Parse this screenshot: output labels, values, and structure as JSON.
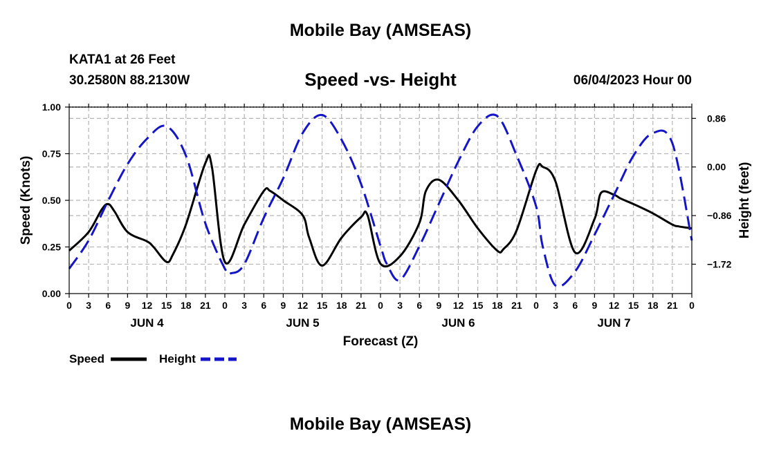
{
  "header": {
    "title": "Mobile Bay (AMSEAS)",
    "station": "KATA1 at 26 Feet",
    "coords": "30.2580N  88.2130W",
    "subtitle": "Speed -vs- Height",
    "datetime": "06/04/2023 Hour 00"
  },
  "footer": {
    "title": "Mobile Bay (AMSEAS)"
  },
  "colors": {
    "speed": "#000000",
    "height": "#1414c8",
    "grid": "#b4b4b4"
  },
  "chart_data": {
    "type": "line",
    "title": "Speed -vs- Height",
    "xlabel": "Forecast (Z)",
    "ylabel": "Speed (Knots)",
    "y2label": "Height (feet)",
    "xlim": [
      0,
      96
    ],
    "ylim": [
      0,
      1
    ],
    "y2lim": [
      -2.24,
      1.06
    ],
    "x_ticks": [
      0,
      3,
      6,
      9,
      12,
      15,
      18,
      21,
      24,
      27,
      30,
      33,
      36,
      39,
      42,
      45,
      48,
      51,
      54,
      57,
      60,
      63,
      66,
      69,
      72,
      75,
      78,
      81,
      84,
      87,
      90,
      93,
      96
    ],
    "x_tick_labels": [
      "0",
      "3",
      "6",
      "9",
      "12",
      "15",
      "18",
      "21",
      "0",
      "3",
      "6",
      "9",
      "12",
      "15",
      "18",
      "21",
      "0",
      "3",
      "6",
      "9",
      "12",
      "15",
      "18",
      "21",
      "0",
      "3",
      "6",
      "9",
      "12",
      "15",
      "18",
      "21",
      "0"
    ],
    "day_labels": [
      {
        "x": 12,
        "label": "JUN 4"
      },
      {
        "x": 36,
        "label": "JUN 5"
      },
      {
        "x": 60,
        "label": "JUN 6"
      },
      {
        "x": 84,
        "label": "JUN 7"
      }
    ],
    "y_ticks": [
      0,
      0.25,
      0.5,
      0.75,
      1.0
    ],
    "y_tick_labels": [
      "0.00",
      "0.25",
      "0.50",
      "0.75",
      "1.00"
    ],
    "y2_ticks": [
      0.86,
      0.0,
      -0.86,
      -1.72
    ],
    "y2_tick_labels": [
      "0.86",
      "0.00",
      "−0.86",
      "−1.72"
    ],
    "legend": [
      {
        "name": "Speed",
        "style": "solid"
      },
      {
        "name": "Height",
        "style": "dashed"
      }
    ],
    "series": [
      {
        "name": "Speed",
        "axis": "left",
        "style": "solid",
        "x": [
          0,
          3,
          5,
          6,
          7,
          9,
          12,
          13,
          15,
          16,
          18,
          21,
          22,
          24,
          27,
          30,
          31,
          33,
          36,
          37,
          39,
          42,
          45,
          46,
          48,
          51,
          54,
          55,
          57,
          60,
          63,
          66,
          67,
          69,
          72,
          73,
          75,
          78,
          81,
          82,
          84,
          85,
          87,
          90,
          93,
          94,
          96
        ],
        "y": [
          0.23,
          0.33,
          0.45,
          0.48,
          0.44,
          0.33,
          0.28,
          0.25,
          0.17,
          0.21,
          0.37,
          0.7,
          0.68,
          0.17,
          0.37,
          0.55,
          0.55,
          0.5,
          0.42,
          0.3,
          0.15,
          0.3,
          0.41,
          0.42,
          0.16,
          0.2,
          0.38,
          0.55,
          0.61,
          0.5,
          0.35,
          0.23,
          0.24,
          0.34,
          0.66,
          0.68,
          0.6,
          0.22,
          0.4,
          0.54,
          0.53,
          0.51,
          0.48,
          0.43,
          0.37,
          0.36,
          0.35
        ]
      },
      {
        "name": "Height",
        "axis": "right",
        "style": "dashed",
        "x": [
          0,
          3,
          6,
          9,
          12,
          15,
          18,
          21,
          24,
          25,
          27,
          30,
          33,
          36,
          39,
          42,
          45,
          48,
          49,
          51,
          54,
          57,
          60,
          63,
          66,
          69,
          72,
          73,
          75,
          78,
          81,
          84,
          87,
          90,
          93,
          96
        ],
        "y": [
          -1.8,
          -1.3,
          -0.6,
          0.05,
          0.5,
          0.72,
          0.2,
          -1.0,
          -1.8,
          -1.88,
          -1.72,
          -0.9,
          -0.2,
          0.6,
          0.92,
          0.48,
          -0.3,
          -1.4,
          -1.72,
          -2.0,
          -1.4,
          -0.65,
          0.1,
          0.72,
          0.9,
          0.2,
          -0.7,
          -1.4,
          -2.1,
          -1.85,
          -1.2,
          -0.5,
          0.2,
          0.6,
          0.42,
          -1.3
        ]
      }
    ]
  }
}
